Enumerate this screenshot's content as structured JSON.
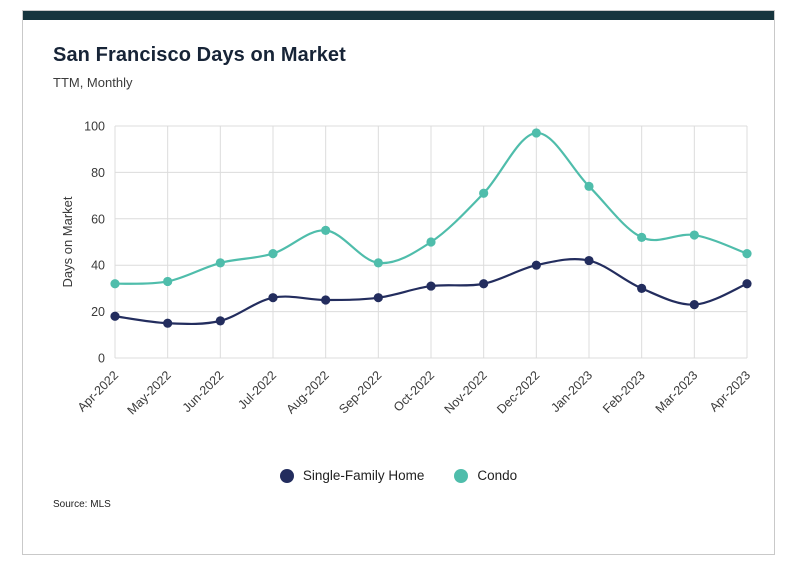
{
  "card": {
    "title": "San Francisco Days on Market",
    "subtitle": "TTM, Monthly",
    "source": "Source: MLS"
  },
  "colors": {
    "accent_bar": "#17353e",
    "grid": "#dcdcdc",
    "axis_text": "#3a3a3a",
    "title_text": "#172437",
    "single_family": "#232d5e",
    "condo": "#4fbdab"
  },
  "chart_data": {
    "type": "line",
    "title": "San Francisco Days on Market",
    "subtitle": "TTM, Monthly",
    "xlabel": "",
    "ylabel": "Days on Market",
    "ylim": [
      0,
      100
    ],
    "yticks": [
      0,
      20,
      40,
      60,
      80,
      100
    ],
    "grid": true,
    "legend_position": "bottom",
    "x": [
      "Apr-2022",
      "May-2022",
      "Jun-2022",
      "Jul-2022",
      "Aug-2022",
      "Sep-2022",
      "Oct-2022",
      "Nov-2022",
      "Dec-2022",
      "Jan-2023",
      "Feb-2023",
      "Mar-2023",
      "Apr-2023"
    ],
    "series": [
      {
        "name": "Single-Family Home",
        "color": "#232d5e",
        "values": [
          18,
          15,
          16,
          26,
          25,
          26,
          31,
          32,
          40,
          42,
          30,
          23,
          32
        ]
      },
      {
        "name": "Condo",
        "color": "#4fbdab",
        "values": [
          32,
          33,
          41,
          45,
          55,
          41,
          50,
          71,
          97,
          74,
          52,
          53,
          45
        ]
      }
    ]
  }
}
